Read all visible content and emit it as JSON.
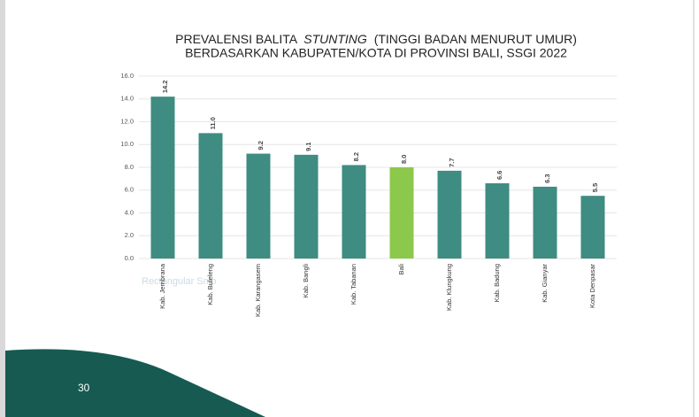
{
  "chart_data": {
    "type": "bar",
    "title": {
      "line1": [
        "PREVALENSI BALITA",
        "STUNTING",
        "(TINGGI BADAN MENURUT UMUR)"
      ],
      "line2": "BERDASARKAN KABUPATEN/KOTA DI PROVINSI BALI, SSGI 2022"
    },
    "categories": [
      "Kab. Jembrana",
      "Kab. Buleleng",
      "Kab. Karangasem",
      "Kab. Bangli",
      "Kab. Tabanan",
      "Bali",
      "Kab. Klungkung",
      "Kab. Badung",
      "Kab. Gianyar",
      "Kota Denpasar"
    ],
    "values": [
      14.2,
      11.0,
      9.2,
      9.1,
      8.2,
      8.0,
      7.7,
      6.6,
      6.3,
      5.5
    ],
    "value_labels": [
      "14.2",
      "11.0",
      "9.2",
      "9.1",
      "8.2",
      "8.0",
      "7.7",
      "6.6",
      "6.3",
      "5.5"
    ],
    "colors": [
      "#3e8c82",
      "#3e8c82",
      "#3e8c82",
      "#3e8c82",
      "#3e8c82",
      "#8cc84b",
      "#3e8c82",
      "#3e8c82",
      "#3e8c82",
      "#3e8c82"
    ],
    "ylim": [
      0,
      16
    ],
    "yticks": [
      {
        "value": 0,
        "label": "0.0"
      },
      {
        "value": 2,
        "label": "2.0"
      },
      {
        "value": 4,
        "label": "4.0"
      },
      {
        "value": 6,
        "label": "6.0"
      },
      {
        "value": 8,
        "label": "8.0"
      },
      {
        "value": 10,
        "label": "10.0"
      },
      {
        "value": 12,
        "label": "12.0"
      },
      {
        "value": 14,
        "label": "14.0"
      },
      {
        "value": 16,
        "label": "16.0"
      }
    ],
    "grid": true
  },
  "overlay_text": "Rectangular Snip",
  "page_number": "30"
}
